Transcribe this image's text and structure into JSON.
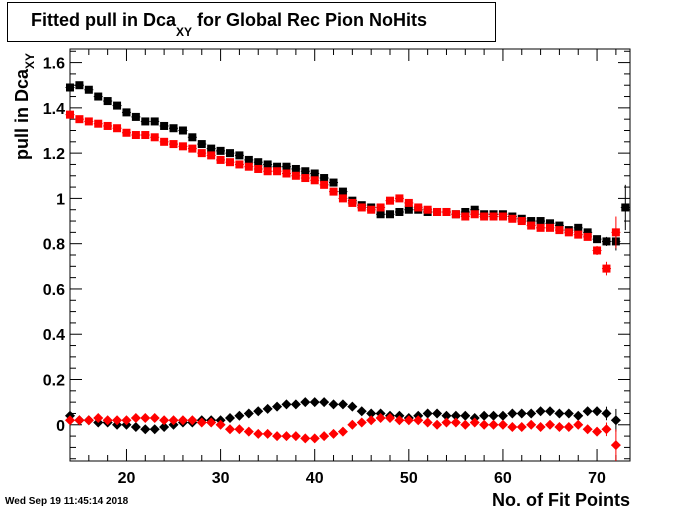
{
  "title": {
    "main": "Fitted pull in Dca",
    "sub": "XY",
    "rest": " for Global Rec Pion NoHits"
  },
  "ylabel": {
    "main": "pull in Dca",
    "sub": "XY"
  },
  "xlabel": "No. of Fit Points",
  "timestamp": "Wed Sep 19 11:45:14 2018",
  "colors": {
    "black": "#000000",
    "red": "#ff0000"
  },
  "chart_data": {
    "type": "scatter",
    "xlim": [
      14,
      73.5
    ],
    "ylim": [
      -0.16,
      1.66
    ],
    "x_ticks": [
      20,
      30,
      40,
      50,
      60,
      70
    ],
    "y_ticks": [
      0,
      0.2,
      0.4,
      0.6,
      0.8,
      1,
      1.2,
      1.4,
      1.6
    ],
    "y_tick_labels": [
      "0",
      "0.2",
      "0.4",
      "0.6",
      "0.8",
      "1",
      "1.2",
      "1.4",
      "1.6"
    ],
    "series": [
      {
        "marker": "square",
        "color": "#000000",
        "x": [
          14,
          15,
          16,
          17,
          18,
          19,
          20,
          21,
          22,
          23,
          24,
          25,
          26,
          27,
          28,
          29,
          30,
          31,
          32,
          33,
          34,
          35,
          36,
          37,
          38,
          39,
          40,
          41,
          42,
          43,
          44,
          45,
          46,
          47,
          48,
          49,
          50,
          51,
          52,
          53,
          54,
          55,
          56,
          57,
          58,
          59,
          60,
          61,
          62,
          63,
          64,
          65,
          66,
          67,
          68,
          69,
          70,
          71,
          72,
          73
        ],
        "y": [
          1.49,
          1.5,
          1.48,
          1.45,
          1.43,
          1.41,
          1.38,
          1.36,
          1.34,
          1.34,
          1.32,
          1.31,
          1.3,
          1.27,
          1.24,
          1.22,
          1.21,
          1.2,
          1.19,
          1.17,
          1.16,
          1.15,
          1.14,
          1.14,
          1.13,
          1.12,
          1.11,
          1.09,
          1.07,
          1.03,
          0.99,
          0.97,
          0.96,
          0.93,
          0.93,
          0.94,
          0.95,
          0.95,
          0.94,
          0.94,
          0.94,
          0.93,
          0.94,
          0.95,
          0.93,
          0.93,
          0.93,
          0.92,
          0.91,
          0.9,
          0.9,
          0.89,
          0.88,
          0.86,
          0.87,
          0.85,
          0.82,
          0.81,
          0.81,
          0.96
        ],
        "err": [
          0.005,
          0.005,
          0.005,
          0.005,
          0.005,
          0.005,
          0.005,
          0.005,
          0.005,
          0.005,
          0.005,
          0.005,
          0.005,
          0.005,
          0.005,
          0.005,
          0.005,
          0.005,
          0.005,
          0.005,
          0.005,
          0.005,
          0.005,
          0.005,
          0.005,
          0.005,
          0.005,
          0.005,
          0.005,
          0.005,
          0.005,
          0.005,
          0.005,
          0.005,
          0.005,
          0.005,
          0.005,
          0.005,
          0.005,
          0.005,
          0.005,
          0.005,
          0.005,
          0.005,
          0.005,
          0.005,
          0.005,
          0.005,
          0.005,
          0.005,
          0.005,
          0.005,
          0.01,
          0.01,
          0.01,
          0.01,
          0.015,
          0.02,
          0.04,
          0.1
        ]
      },
      {
        "marker": "square",
        "color": "#ff0000",
        "x": [
          14,
          15,
          16,
          17,
          18,
          19,
          20,
          21,
          22,
          23,
          24,
          25,
          26,
          27,
          28,
          29,
          30,
          31,
          32,
          33,
          34,
          35,
          36,
          37,
          38,
          39,
          40,
          41,
          42,
          43,
          44,
          45,
          46,
          47,
          48,
          49,
          50,
          51,
          52,
          53,
          54,
          55,
          56,
          57,
          58,
          59,
          60,
          61,
          62,
          63,
          64,
          65,
          66,
          67,
          68,
          69,
          70,
          71,
          72
        ],
        "y": [
          1.37,
          1.35,
          1.34,
          1.33,
          1.32,
          1.31,
          1.29,
          1.28,
          1.28,
          1.27,
          1.25,
          1.24,
          1.23,
          1.22,
          1.2,
          1.19,
          1.17,
          1.16,
          1.15,
          1.14,
          1.13,
          1.12,
          1.12,
          1.11,
          1.1,
          1.09,
          1.08,
          1.06,
          1.03,
          1.0,
          0.98,
          0.96,
          0.95,
          0.96,
          0.99,
          1.0,
          0.98,
          0.96,
          0.95,
          0.94,
          0.94,
          0.93,
          0.92,
          0.93,
          0.92,
          0.92,
          0.92,
          0.91,
          0.9,
          0.88,
          0.87,
          0.87,
          0.86,
          0.85,
          0.84,
          0.83,
          0.77,
          0.69,
          0.85
        ],
        "err": [
          0.005,
          0.005,
          0.005,
          0.005,
          0.005,
          0.005,
          0.005,
          0.005,
          0.005,
          0.005,
          0.005,
          0.005,
          0.005,
          0.005,
          0.005,
          0.005,
          0.005,
          0.005,
          0.005,
          0.005,
          0.005,
          0.005,
          0.005,
          0.005,
          0.005,
          0.005,
          0.005,
          0.005,
          0.005,
          0.005,
          0.005,
          0.005,
          0.005,
          0.005,
          0.005,
          0.005,
          0.005,
          0.005,
          0.005,
          0.005,
          0.005,
          0.005,
          0.005,
          0.005,
          0.005,
          0.005,
          0.005,
          0.005,
          0.005,
          0.005,
          0.005,
          0.005,
          0.01,
          0.01,
          0.01,
          0.015,
          0.02,
          0.03,
          0.07
        ]
      },
      {
        "marker": "diamond",
        "color": "#000000",
        "x": [
          14,
          15,
          16,
          17,
          18,
          19,
          20,
          21,
          22,
          23,
          24,
          25,
          26,
          27,
          28,
          29,
          30,
          31,
          32,
          33,
          34,
          35,
          36,
          37,
          38,
          39,
          40,
          41,
          42,
          43,
          44,
          45,
          46,
          47,
          48,
          49,
          50,
          51,
          52,
          53,
          54,
          55,
          56,
          57,
          58,
          59,
          60,
          61,
          62,
          63,
          64,
          65,
          66,
          67,
          68,
          69,
          70,
          71,
          72
        ],
        "y": [
          0.04,
          0.02,
          0.02,
          0.01,
          0.01,
          0.0,
          0.0,
          -0.01,
          -0.02,
          -0.02,
          -0.01,
          0.0,
          0.01,
          0.01,
          0.02,
          0.02,
          0.02,
          0.03,
          0.04,
          0.05,
          0.06,
          0.07,
          0.08,
          0.09,
          0.09,
          0.1,
          0.1,
          0.1,
          0.09,
          0.09,
          0.08,
          0.06,
          0.05,
          0.05,
          0.04,
          0.04,
          0.03,
          0.04,
          0.05,
          0.05,
          0.04,
          0.04,
          0.04,
          0.03,
          0.04,
          0.04,
          0.04,
          0.05,
          0.05,
          0.05,
          0.06,
          0.06,
          0.05,
          0.05,
          0.04,
          0.06,
          0.06,
          0.05,
          0.02
        ],
        "err": [
          0.005,
          0.005,
          0.005,
          0.005,
          0.005,
          0.005,
          0.005,
          0.005,
          0.005,
          0.005,
          0.005,
          0.005,
          0.005,
          0.005,
          0.005,
          0.005,
          0.005,
          0.005,
          0.005,
          0.005,
          0.005,
          0.005,
          0.005,
          0.005,
          0.005,
          0.005,
          0.005,
          0.005,
          0.005,
          0.005,
          0.005,
          0.005,
          0.005,
          0.005,
          0.005,
          0.005,
          0.005,
          0.005,
          0.005,
          0.005,
          0.005,
          0.005,
          0.005,
          0.005,
          0.005,
          0.005,
          0.005,
          0.005,
          0.005,
          0.005,
          0.005,
          0.005,
          0.01,
          0.01,
          0.01,
          0.015,
          0.02,
          0.03,
          0.05
        ]
      },
      {
        "marker": "diamond",
        "color": "#ff0000",
        "x": [
          14,
          15,
          16,
          17,
          18,
          19,
          20,
          21,
          22,
          23,
          24,
          25,
          26,
          27,
          28,
          29,
          30,
          31,
          32,
          33,
          34,
          35,
          36,
          37,
          38,
          39,
          40,
          41,
          42,
          43,
          44,
          45,
          46,
          47,
          48,
          49,
          50,
          51,
          52,
          53,
          54,
          55,
          56,
          57,
          58,
          59,
          60,
          61,
          62,
          63,
          64,
          65,
          66,
          67,
          68,
          69,
          70,
          71,
          72
        ],
        "y": [
          0.02,
          0.02,
          0.02,
          0.03,
          0.02,
          0.02,
          0.02,
          0.03,
          0.03,
          0.03,
          0.02,
          0.02,
          0.02,
          0.02,
          0.01,
          0.01,
          0.0,
          -0.02,
          -0.02,
          -0.03,
          -0.04,
          -0.04,
          -0.05,
          -0.05,
          -0.05,
          -0.06,
          -0.06,
          -0.05,
          -0.04,
          -0.03,
          0.0,
          0.01,
          0.02,
          0.03,
          0.03,
          0.02,
          0.02,
          0.02,
          0.01,
          0.0,
          0.01,
          0.01,
          0.0,
          0.01,
          0.0,
          0.0,
          0.0,
          -0.01,
          -0.01,
          0.0,
          -0.01,
          0.0,
          -0.01,
          -0.01,
          0.0,
          -0.02,
          -0.03,
          -0.02,
          -0.09
        ],
        "err": [
          0.005,
          0.005,
          0.005,
          0.005,
          0.005,
          0.005,
          0.005,
          0.005,
          0.005,
          0.005,
          0.005,
          0.005,
          0.005,
          0.005,
          0.005,
          0.005,
          0.005,
          0.005,
          0.005,
          0.005,
          0.005,
          0.005,
          0.005,
          0.005,
          0.005,
          0.005,
          0.005,
          0.005,
          0.005,
          0.005,
          0.005,
          0.005,
          0.005,
          0.005,
          0.005,
          0.005,
          0.005,
          0.005,
          0.005,
          0.005,
          0.005,
          0.005,
          0.005,
          0.005,
          0.005,
          0.005,
          0.005,
          0.005,
          0.005,
          0.005,
          0.005,
          0.005,
          0.01,
          0.01,
          0.01,
          0.015,
          0.02,
          0.03,
          0.07
        ]
      }
    ]
  }
}
